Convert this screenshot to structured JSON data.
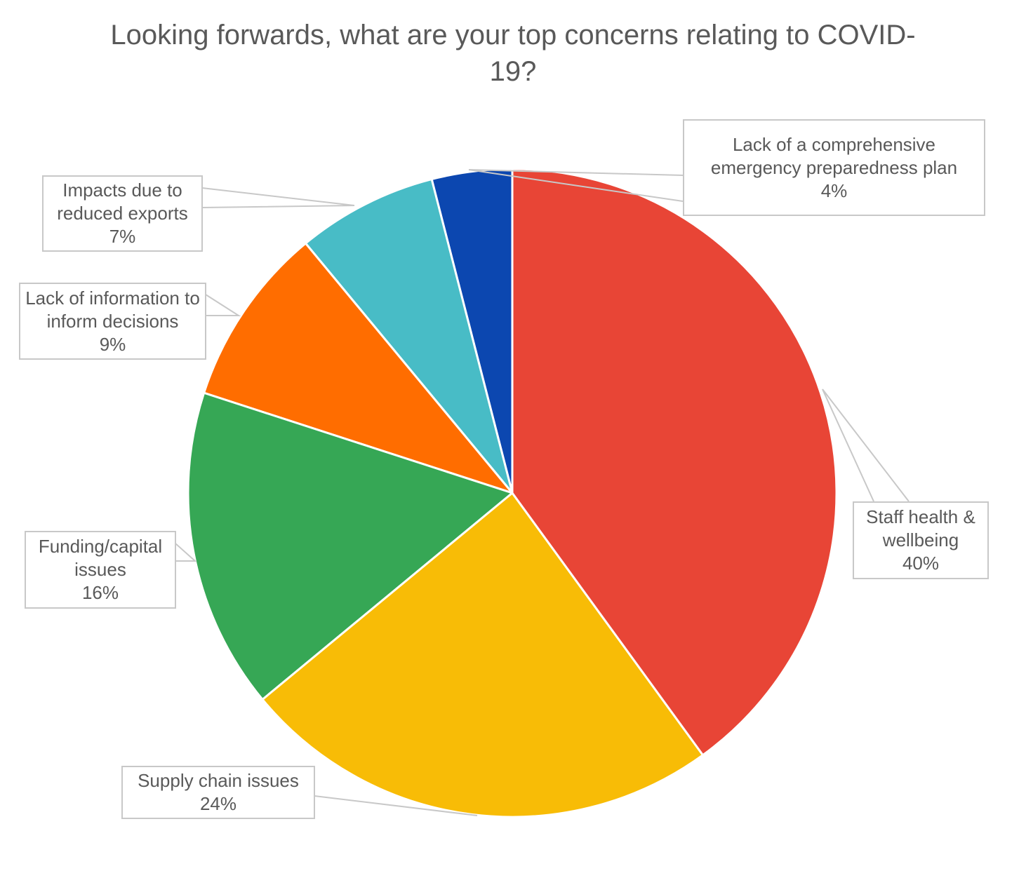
{
  "chart_data": {
    "type": "pie",
    "title": "Looking forwards, what are your top concerns relating to COVID-19?",
    "categories": [
      "Staff health & wellbeing",
      "Supply chain issues",
      "Funding/capital issues",
      "Lack of information to inform decisions",
      "Impacts due to reduced exports",
      "Lack of a comprehensive emergency preparedness plan"
    ],
    "values": [
      40,
      24,
      16,
      9,
      7,
      4
    ],
    "value_labels": [
      "40%",
      "24%",
      "16%",
      "9%",
      "7%",
      "4%"
    ],
    "colors": [
      "#e84536",
      "#f8bc06",
      "#36a755",
      "#ff6d00",
      "#48bcc6",
      "#0c47b0"
    ]
  }
}
